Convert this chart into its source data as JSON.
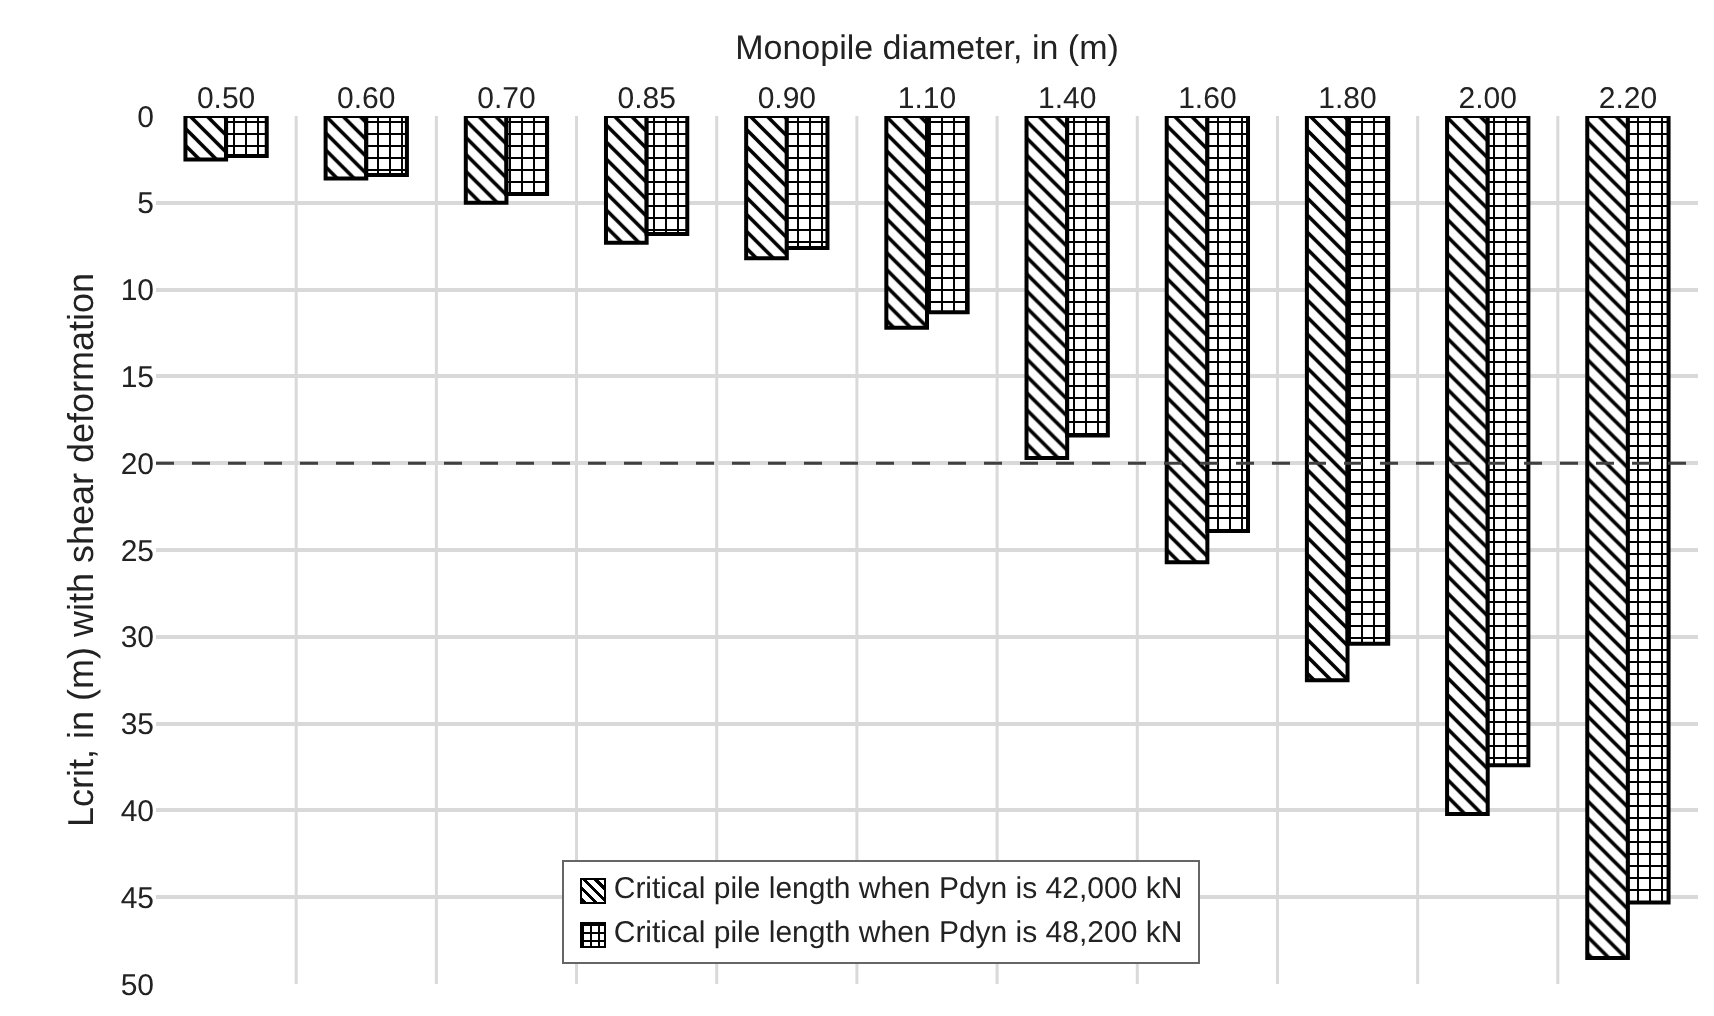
{
  "chart_data": {
    "type": "bar",
    "xlabel": "Monopile diameter, in (m)",
    "ylabel": "Lcrit, in (m) with shear deformation",
    "categories": [
      "0.50",
      "0.60",
      "0.70",
      "0.85",
      "0.90",
      "1.10",
      "1.40",
      "1.60",
      "1.80",
      "2.00",
      "2.20"
    ],
    "series": [
      {
        "name": "Critical pile length when Pdyn is 42,000 kN",
        "color": "#000000",
        "values": [
          2.5,
          3.6,
          5.0,
          7.3,
          8.2,
          12.2,
          19.7,
          25.7,
          32.5,
          40.2,
          48.5
        ]
      },
      {
        "name": "Critical pile length when Pdyn is 48,200 kN",
        "color": "#000000",
        "values": [
          2.3,
          3.4,
          4.5,
          6.8,
          7.6,
          11.3,
          18.4,
          23.9,
          30.4,
          37.4,
          45.3
        ]
      }
    ],
    "ylim": [
      50,
      0
    ],
    "yticks": [
      0,
      5,
      10,
      15,
      20,
      25,
      30,
      35,
      40,
      45,
      50
    ],
    "grid": true,
    "legend": "bottom",
    "ref_lines": [
      {
        "axis": "y",
        "value": 20,
        "color": "#404040",
        "line_style": "dashed"
      }
    ]
  }
}
